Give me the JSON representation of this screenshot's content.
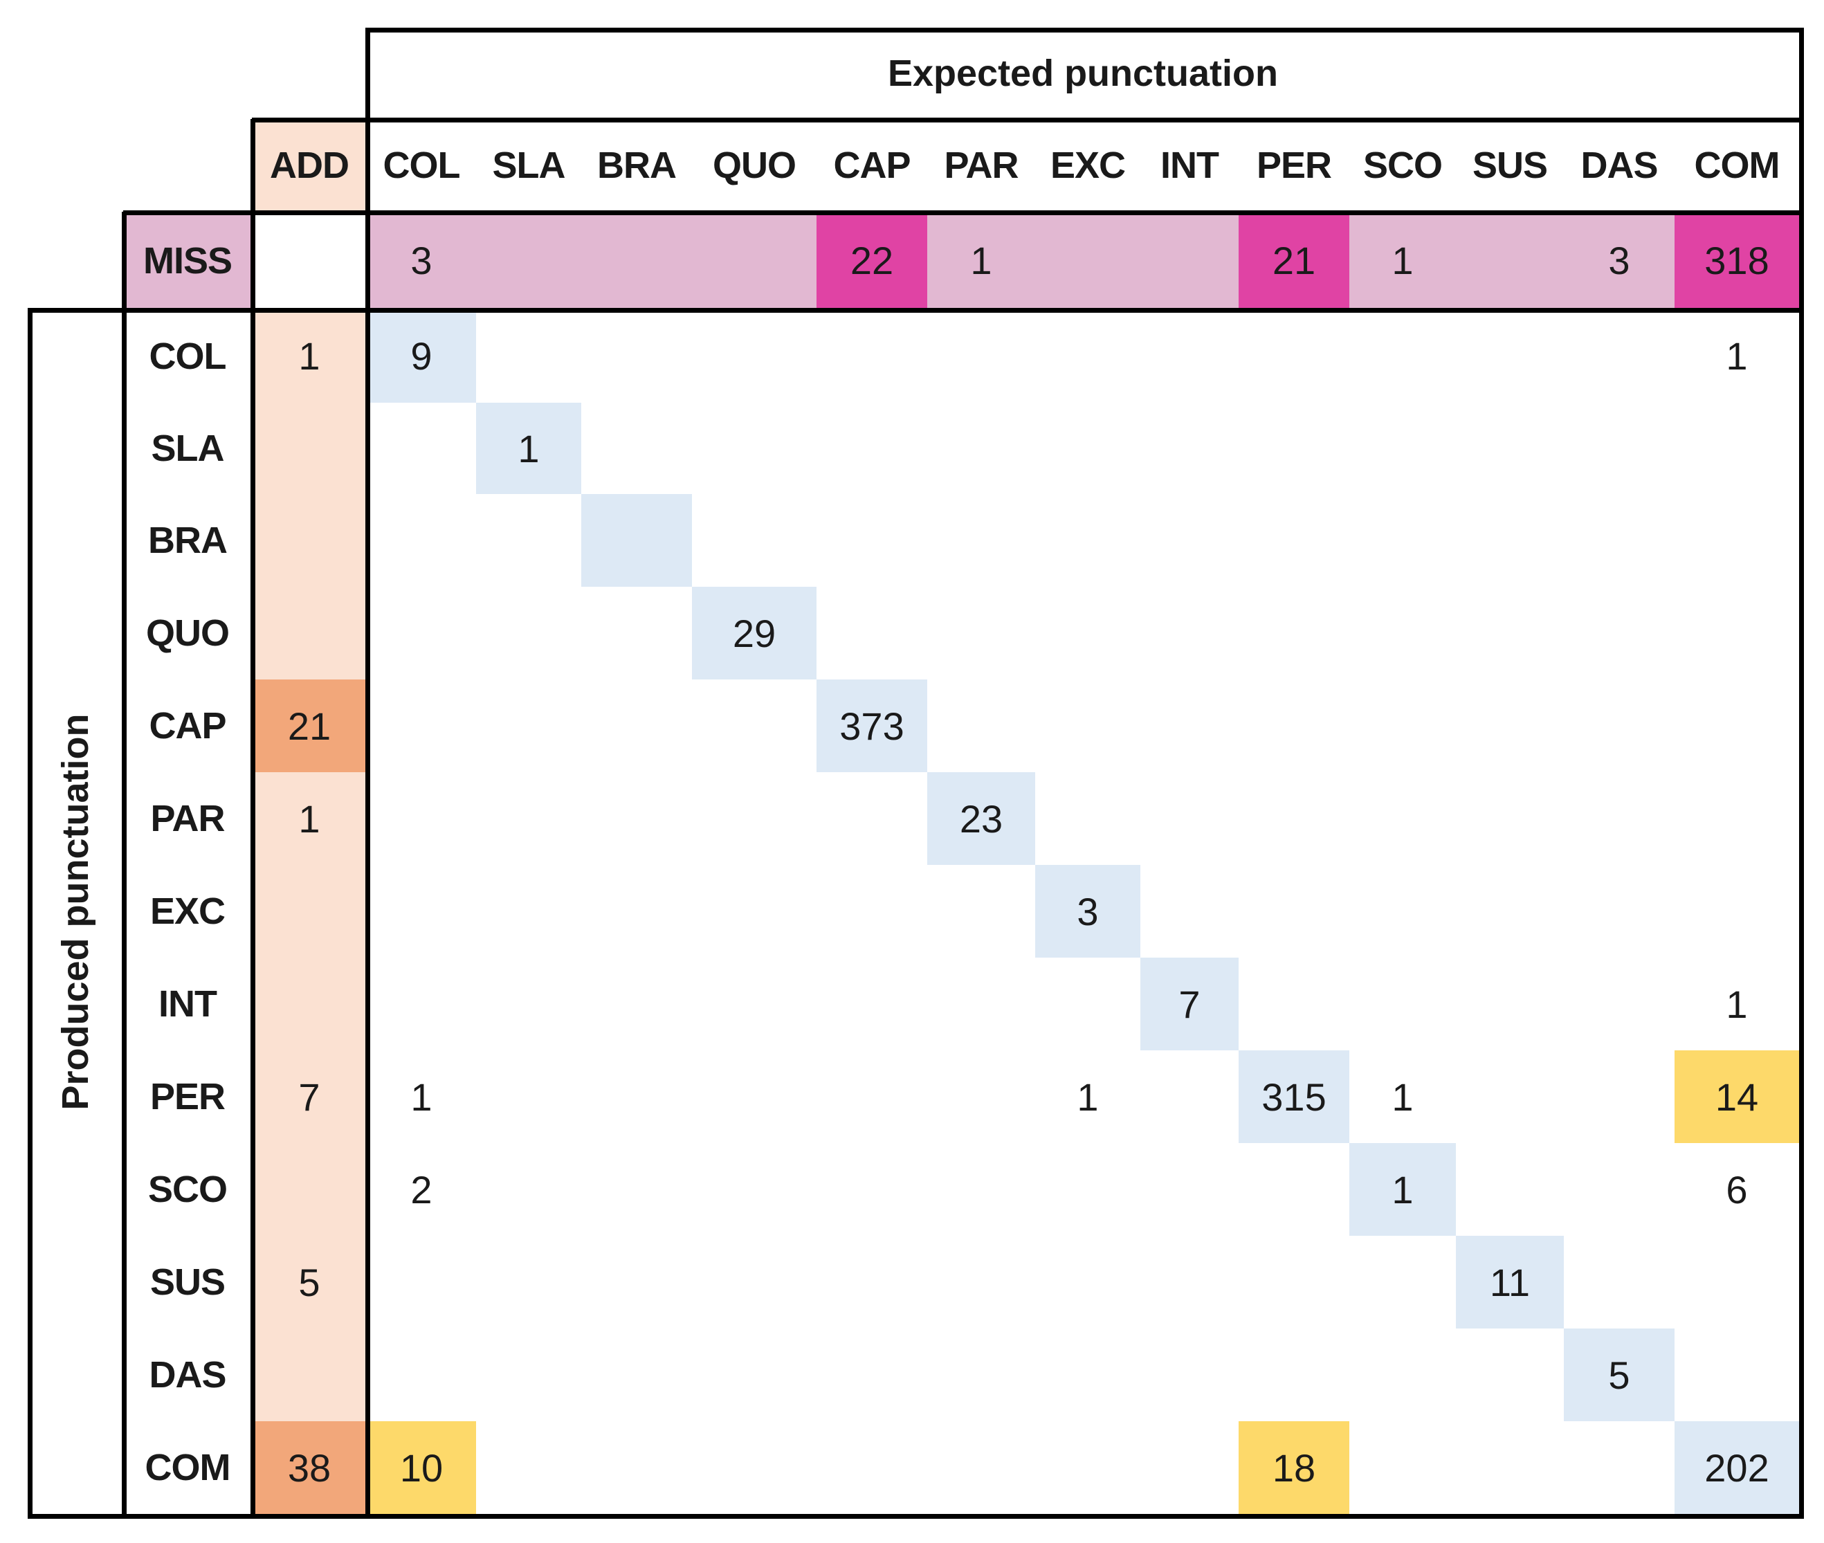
{
  "chart_data": {
    "type": "heatmap",
    "title": "",
    "column_axis_title": "Expected punctuation",
    "row_axis_title": "Produced punctuation",
    "add_label": "ADD",
    "miss_label": "MISS",
    "columns": [
      "COL",
      "SLA",
      "BRA",
      "QUO",
      "CAP",
      "PAR",
      "EXC",
      "INT",
      "PER",
      "SCO",
      "SUS",
      "DAS",
      "COM"
    ],
    "rows": [
      "COL",
      "SLA",
      "BRA",
      "QUO",
      "CAP",
      "PAR",
      "EXC",
      "INT",
      "PER",
      "SCO",
      "SUS",
      "DAS",
      "COM"
    ],
    "miss": [
      3,
      null,
      null,
      null,
      22,
      1,
      null,
      null,
      21,
      1,
      null,
      3,
      318
    ],
    "add": [
      1,
      null,
      null,
      null,
      21,
      1,
      null,
      null,
      7,
      null,
      5,
      null,
      38
    ],
    "matrix": [
      [
        9,
        null,
        null,
        null,
        null,
        null,
        null,
        null,
        null,
        null,
        null,
        null,
        1
      ],
      [
        null,
        1,
        null,
        null,
        null,
        null,
        null,
        null,
        null,
        null,
        null,
        null,
        null
      ],
      [
        null,
        null,
        null,
        null,
        null,
        null,
        null,
        null,
        null,
        null,
        null,
        null,
        null
      ],
      [
        null,
        null,
        null,
        29,
        null,
        null,
        null,
        null,
        null,
        null,
        null,
        null,
        null
      ],
      [
        null,
        null,
        null,
        null,
        373,
        null,
        null,
        null,
        null,
        null,
        null,
        null,
        null
      ],
      [
        null,
        null,
        null,
        null,
        null,
        23,
        null,
        null,
        null,
        null,
        null,
        null,
        null
      ],
      [
        null,
        null,
        null,
        null,
        null,
        null,
        3,
        null,
        null,
        null,
        null,
        null,
        null
      ],
      [
        null,
        null,
        null,
        null,
        null,
        null,
        null,
        7,
        null,
        null,
        null,
        null,
        1
      ],
      [
        1,
        null,
        null,
        null,
        null,
        null,
        1,
        null,
        315,
        1,
        null,
        null,
        14
      ],
      [
        2,
        null,
        null,
        null,
        null,
        null,
        null,
        null,
        null,
        1,
        null,
        null,
        6
      ],
      [
        null,
        null,
        null,
        null,
        null,
        null,
        null,
        null,
        null,
        null,
        11,
        null,
        null
      ],
      [
        null,
        null,
        null,
        null,
        null,
        null,
        null,
        null,
        null,
        null,
        null,
        5,
        null
      ],
      [
        10,
        null,
        null,
        null,
        null,
        null,
        null,
        null,
        18,
        null,
        null,
        null,
        202
      ]
    ],
    "miss_highlight_columns": [
      "CAP",
      "PER",
      "COM"
    ],
    "add_highlight_rows": [
      "CAP",
      "COM"
    ],
    "offdiag_highlights": [
      {
        "row": "PER",
        "col": "COM"
      },
      {
        "row": "COM",
        "col": "COL"
      },
      {
        "row": "COM",
        "col": "PER"
      }
    ],
    "colors": {
      "diagonal": "#dde9f5",
      "miss_band": "#e2b8d2",
      "miss_highlight": "#e043a4",
      "add_band": "#fbe1d2",
      "add_highlight": "#f2a77a",
      "offdiag_highlight": "#fdd96a"
    }
  }
}
